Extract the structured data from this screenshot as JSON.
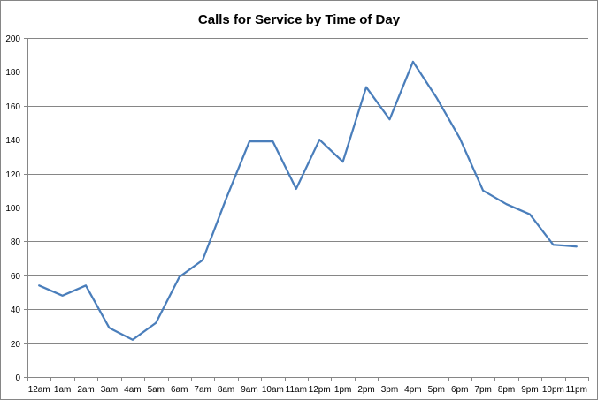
{
  "chart_data": {
    "type": "line",
    "title": "Calls for Service by Time of Day",
    "xlabel": "",
    "ylabel": "",
    "categories": [
      "12am",
      "1am",
      "2am",
      "3am",
      "4am",
      "5am",
      "6am",
      "7am",
      "8am",
      "9am",
      "10am",
      "11am",
      "12pm",
      "1pm",
      "2pm",
      "3pm",
      "4pm",
      "5pm",
      "6pm",
      "7pm",
      "8pm",
      "9pm",
      "10pm",
      "11pm"
    ],
    "series": [
      {
        "values": [
          54,
          48,
          54,
          29,
          22,
          32,
          59,
          69,
          105,
          139,
          139,
          111,
          140,
          127,
          171,
          152,
          186,
          165,
          141,
          110,
          102,
          96,
          78,
          77
        ]
      }
    ],
    "ylim": [
      0,
      200
    ],
    "yticks": [
      0,
      20,
      40,
      60,
      80,
      100,
      120,
      140,
      160,
      180,
      200
    ],
    "grid": true,
    "legend": "none",
    "line_color": "#4a7ebb"
  }
}
